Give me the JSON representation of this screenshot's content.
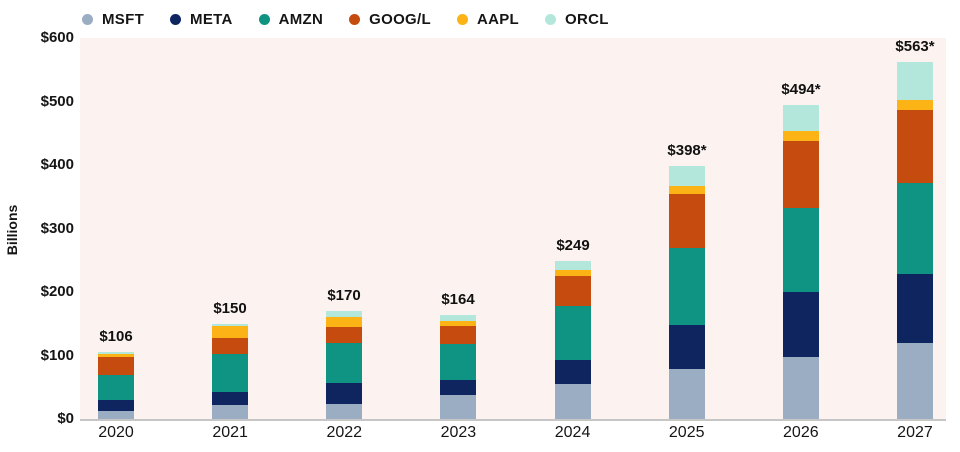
{
  "legend": {
    "items": [
      {
        "label": "MSFT",
        "color": "#9badc3"
      },
      {
        "label": "META",
        "color": "#0e2560"
      },
      {
        "label": "AMZN",
        "color": "#0f9483"
      },
      {
        "label": "GOOG/L",
        "color": "#c64b0e"
      },
      {
        "label": "AAPL",
        "color": "#fcb316"
      },
      {
        "label": "ORCL",
        "color": "#b4e7db"
      }
    ]
  },
  "y_axis": {
    "title": "Billions",
    "ticks": [
      {
        "label": "$600",
        "value": 600
      },
      {
        "label": "$500",
        "value": 500
      },
      {
        "label": "$400",
        "value": 400
      },
      {
        "label": "$300",
        "value": 300
      },
      {
        "label": "$200",
        "value": 200
      },
      {
        "label": "$100",
        "value": 100
      },
      {
        "label": "$0",
        "value": 0
      }
    ]
  },
  "chart_data": {
    "type": "bar",
    "stacked": true,
    "title": "",
    "xlabel": "",
    "ylabel": "Billions",
    "ylim": [
      0,
      600
    ],
    "grid": false,
    "legend_position": "top",
    "categories": [
      "2020",
      "2021",
      "2022",
      "2023",
      "2024",
      "2025",
      "2026",
      "2027"
    ],
    "series": [
      {
        "name": "MSFT",
        "color": "#9badc3",
        "values": [
          13,
          22,
          24,
          38,
          55,
          79,
          97,
          119
        ]
      },
      {
        "name": "META",
        "color": "#0e2560",
        "values": [
          17,
          21,
          32,
          24,
          38,
          69,
          103,
          109
        ]
      },
      {
        "name": "AMZN",
        "color": "#0f9483",
        "values": [
          39,
          59,
          64,
          56,
          85,
          121,
          133,
          143
        ]
      },
      {
        "name": "GOOG/L",
        "color": "#c64b0e",
        "values": [
          28,
          25,
          25,
          29,
          48,
          85,
          105,
          115
        ]
      },
      {
        "name": "AAPL",
        "color": "#fcb316",
        "values": [
          5,
          20,
          16,
          7,
          9,
          13,
          16,
          17
        ]
      },
      {
        "name": "ORCL",
        "color": "#b4e7db",
        "values": [
          4,
          3,
          9,
          10,
          14,
          31,
          40,
          60
        ]
      }
    ],
    "totals": [
      106,
      150,
      170,
      164,
      249,
      398,
      494,
      563
    ],
    "total_labels": [
      "$106",
      "$150",
      "$170",
      "$164",
      "$249",
      "$398*",
      "$494*",
      "$563*"
    ]
  },
  "colors": {
    "page_bg": "#ffffff",
    "plot_bg": "#fcf3f1",
    "axis_line": "#c6c6c6",
    "text": "#1a1a1a"
  }
}
